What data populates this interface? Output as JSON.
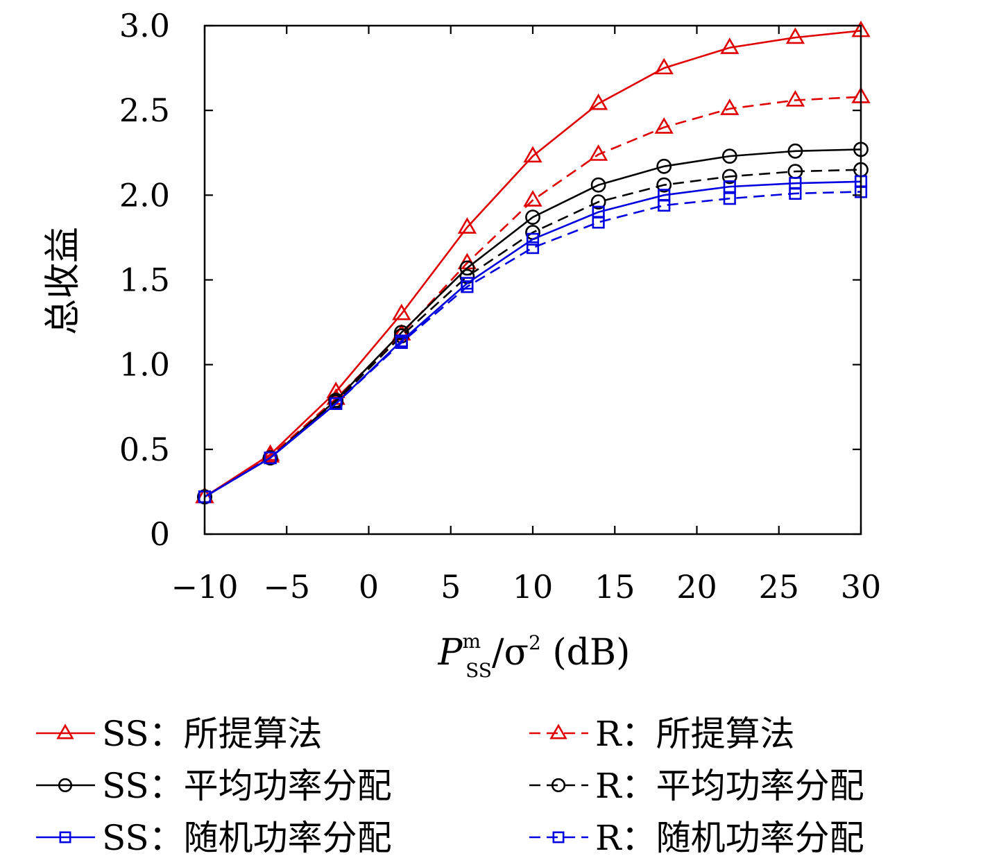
{
  "chart_data": {
    "type": "line",
    "ylabel": "总收益",
    "xlabel_parts": {
      "main": "P",
      "superscript": "m",
      "subscript": "SS",
      "rest": "/σ",
      "rest_superscript": "2",
      "unit": " (dB)"
    },
    "xlim": [
      -10,
      30
    ],
    "ylim": [
      0,
      3.0
    ],
    "x_ticks": [
      -10,
      -5,
      0,
      5,
      10,
      15,
      20,
      25,
      30
    ],
    "x_tick_labels": [
      "−10",
      "−5",
      "0",
      "5",
      "10",
      "15",
      "20",
      "25",
      "30"
    ],
    "y_ticks": [
      0,
      0.5,
      1.0,
      1.5,
      2.0,
      2.5,
      3.0
    ],
    "y_tick_labels": [
      "0",
      "0.5",
      "1.0",
      "1.5",
      "2.0",
      "2.5",
      "3.0"
    ],
    "grid": false,
    "legend_position": "bottom",
    "x": [
      -10,
      -6,
      -2,
      2,
      6,
      10,
      14,
      18,
      22,
      26,
      30
    ],
    "series": [
      {
        "name": "SS：所提算法",
        "color": "#e00000",
        "dash": "solid",
        "marker": "triangle",
        "values": [
          0.22,
          0.47,
          0.84,
          1.3,
          1.81,
          2.23,
          2.54,
          2.75,
          2.87,
          2.93,
          2.97
        ]
      },
      {
        "name": "R：所提算法",
        "color": "#e00000",
        "dash": "dashed",
        "marker": "triangle",
        "values": [
          0.22,
          0.46,
          0.8,
          1.18,
          1.6,
          1.97,
          2.24,
          2.4,
          2.51,
          2.56,
          2.58
        ]
      },
      {
        "name": "SS：平均功率分配",
        "color": "#000000",
        "dash": "solid",
        "marker": "circle",
        "values": [
          0.22,
          0.45,
          0.79,
          1.19,
          1.57,
          1.87,
          2.06,
          2.17,
          2.23,
          2.26,
          2.27
        ]
      },
      {
        "name": "R：平均功率分配",
        "color": "#000000",
        "dash": "dashed",
        "marker": "circle",
        "values": [
          0.22,
          0.45,
          0.78,
          1.17,
          1.52,
          1.78,
          1.96,
          2.06,
          2.11,
          2.14,
          2.15
        ]
      },
      {
        "name": "SS：随机功率分配",
        "color": "#0000e0",
        "dash": "solid",
        "marker": "square",
        "values": [
          0.22,
          0.45,
          0.77,
          1.14,
          1.48,
          1.74,
          1.9,
          2.0,
          2.05,
          2.07,
          2.08
        ]
      },
      {
        "name": "R：随机功率分配",
        "color": "#0000e0",
        "dash": "dashed",
        "marker": "square",
        "values": [
          0.22,
          0.45,
          0.77,
          1.13,
          1.46,
          1.69,
          1.84,
          1.94,
          1.98,
          2.01,
          2.02
        ]
      }
    ]
  }
}
